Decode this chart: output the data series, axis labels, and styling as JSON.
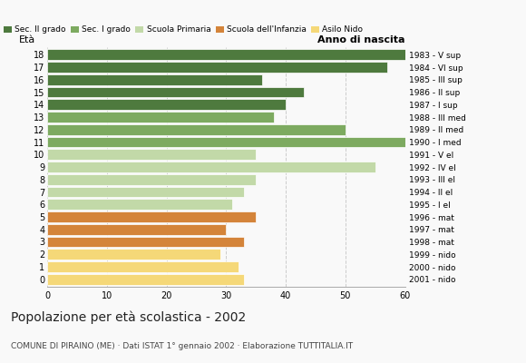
{
  "ages": [
    18,
    17,
    16,
    15,
    14,
    13,
    12,
    11,
    10,
    9,
    8,
    7,
    6,
    5,
    4,
    3,
    2,
    1,
    0
  ],
  "values": [
    61,
    57,
    36,
    43,
    40,
    38,
    50,
    61,
    35,
    55,
    35,
    33,
    31,
    35,
    30,
    33,
    29,
    32,
    33
  ],
  "right_labels": [
    "1983 - V sup",
    "1984 - VI sup",
    "1985 - III sup",
    "1986 - II sup",
    "1987 - I sup",
    "1988 - III med",
    "1989 - II med",
    "1990 - I med",
    "1991 - V el",
    "1992 - IV el",
    "1993 - III el",
    "1994 - II el",
    "1995 - I el",
    "1996 - mat",
    "1997 - mat",
    "1998 - mat",
    "1999 - nido",
    "2000 - nido",
    "2001 - nido"
  ],
  "colors": [
    "#4e7a3e",
    "#4e7a3e",
    "#4e7a3e",
    "#4e7a3e",
    "#4e7a3e",
    "#7daa60",
    "#7daa60",
    "#7daa60",
    "#c2d9a8",
    "#c2d9a8",
    "#c2d9a8",
    "#c2d9a8",
    "#c2d9a8",
    "#d4843a",
    "#d4843a",
    "#d4843a",
    "#f5d878",
    "#f5d878",
    "#f5d878"
  ],
  "legend_labels": [
    "Sec. II grado",
    "Sec. I grado",
    "Scuola Primaria",
    "Scuola dell'Infanzia",
    "Asilo Nido"
  ],
  "legend_colors": [
    "#4e7a3e",
    "#7daa60",
    "#c2d9a8",
    "#d4843a",
    "#f5d878"
  ],
  "title": "Popolazione per età scolastica - 2002",
  "subtitle": "COMUNE DI PIRAINO (ME) · Dati ISTAT 1° gennaio 2002 · Elaborazione TUTTITALIA.IT",
  "xlabel_age": "Età",
  "xlabel_birth": "Anno di nascita",
  "xlim": [
    0,
    60
  ],
  "background_color": "#f9f9f9",
  "bar_height": 0.85,
  "grid_color": "#cccccc"
}
